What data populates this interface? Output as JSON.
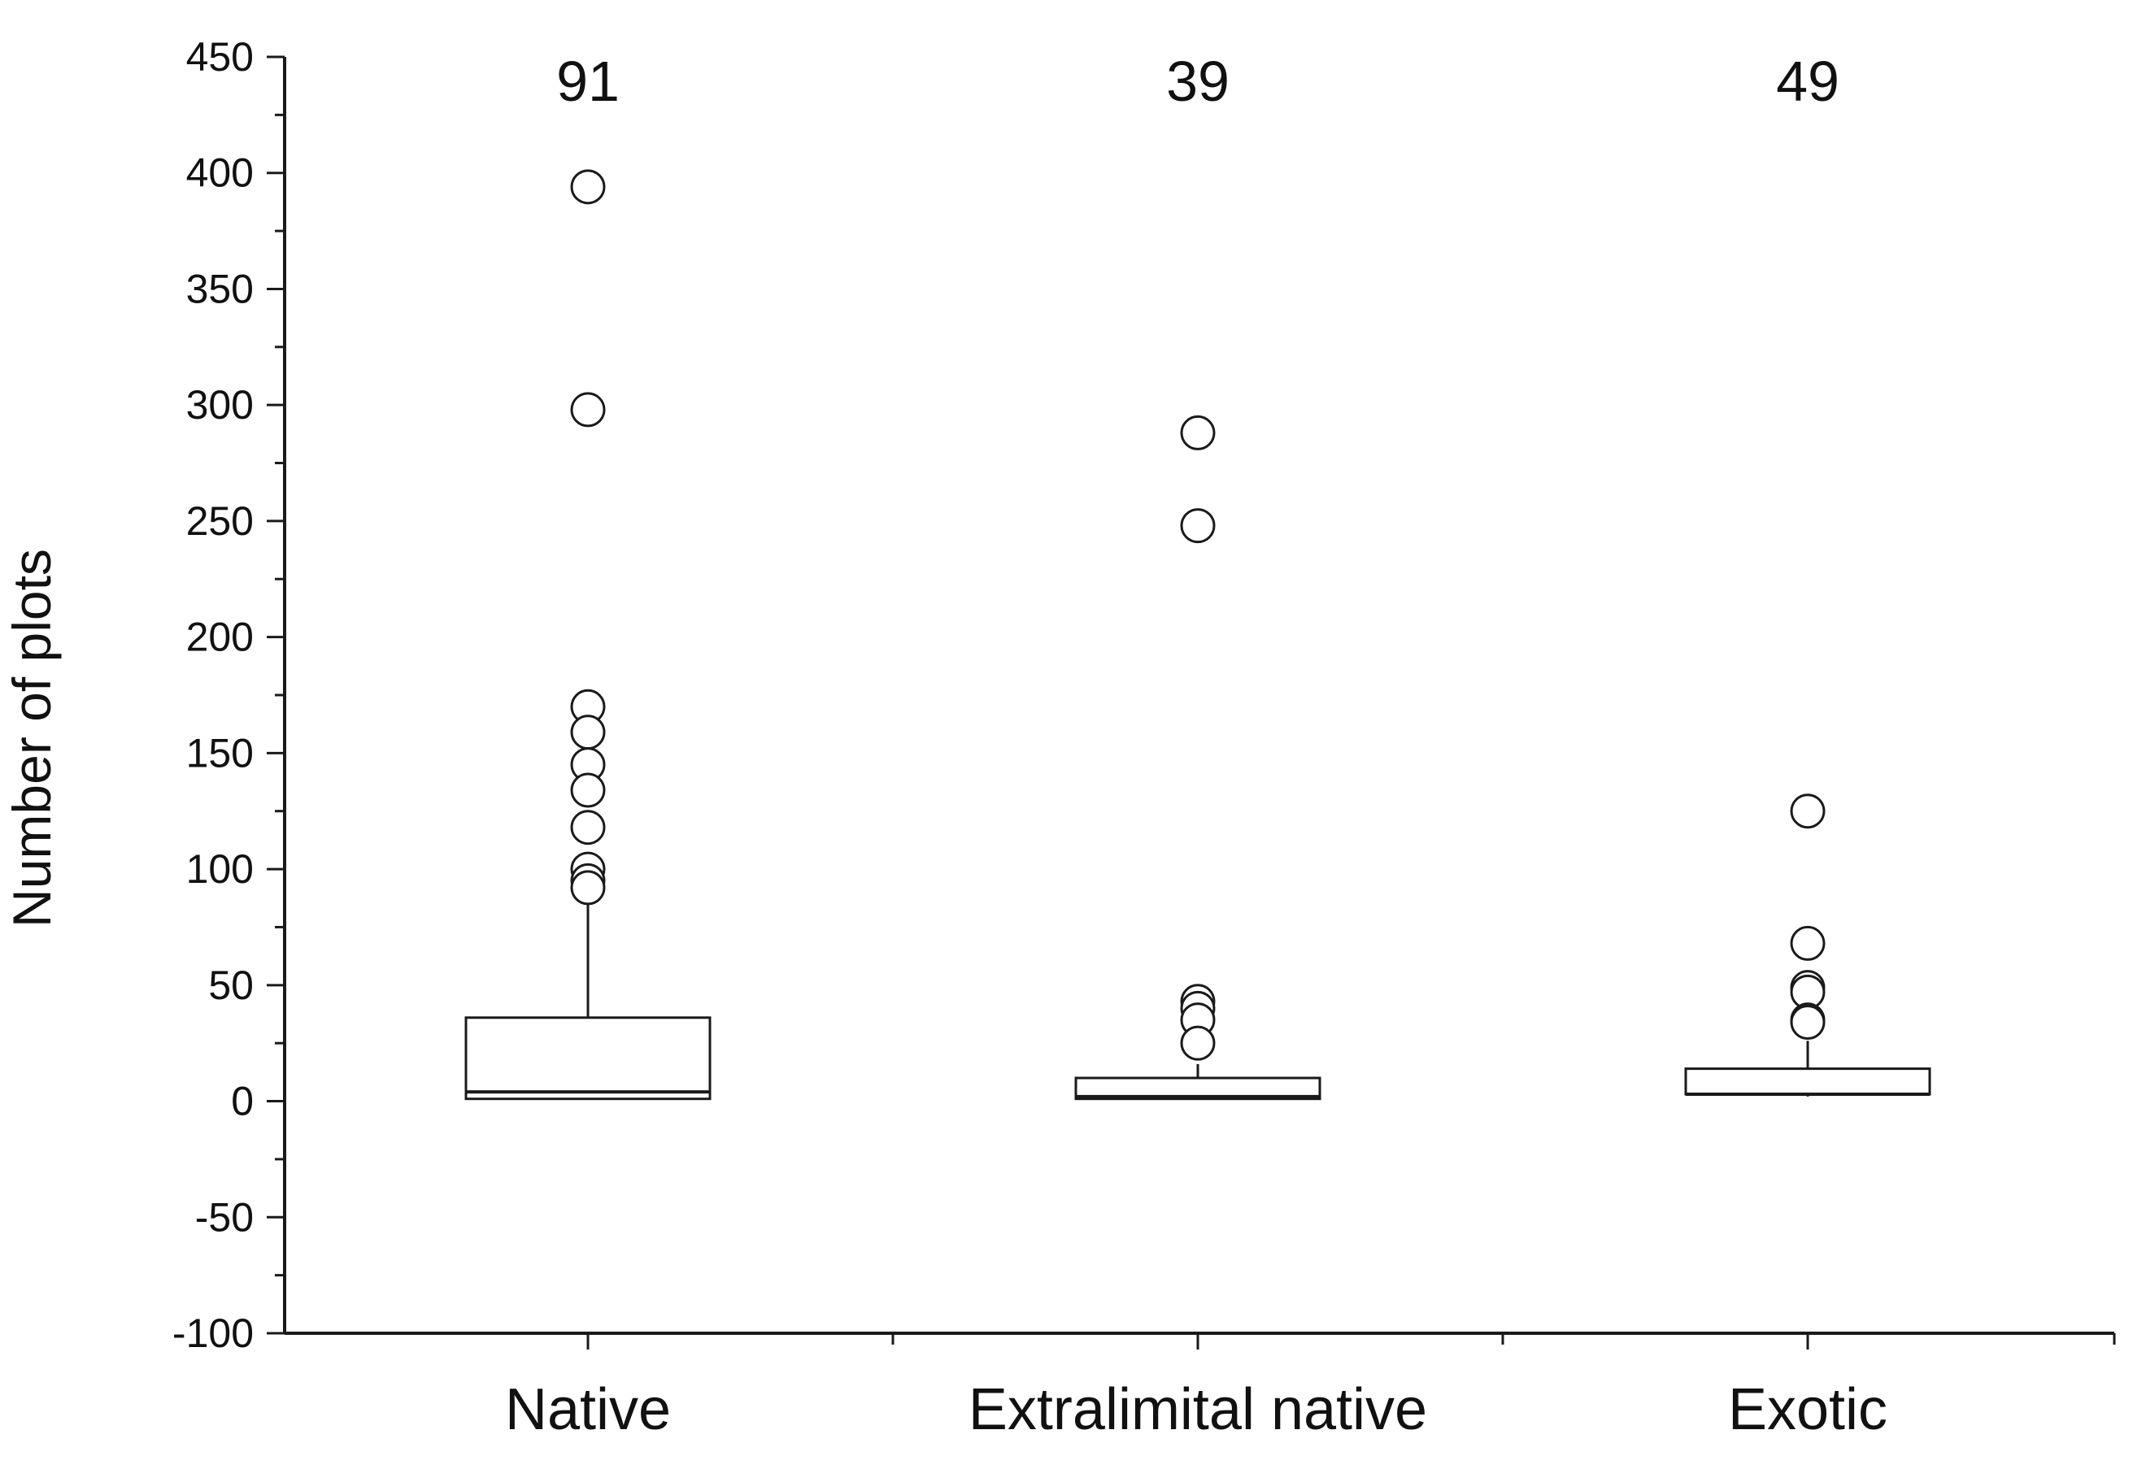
{
  "chart_data": {
    "type": "box",
    "ylabel": "Number of plots",
    "xlabel": "",
    "ylim": [
      -100,
      450
    ],
    "yticks": [
      450,
      400,
      350,
      300,
      250,
      200,
      150,
      100,
      50,
      0,
      -50,
      -100
    ],
    "y_tick_labels": [
      "450",
      "400",
      "350",
      "300",
      "250",
      "200",
      "150",
      "100",
      "50",
      "0",
      "-50",
      "-100"
    ],
    "y_minor_step": 25,
    "grid": false,
    "categories": [
      "Native",
      "Extralimital native",
      "Exotic"
    ],
    "groups": [
      {
        "category": "Native",
        "n_label": "91",
        "q1": 1,
        "median": 4,
        "q3": 36,
        "whisker_low": 1,
        "whisker_high": 85,
        "outliers": [
          394,
          298,
          170,
          159,
          145,
          134,
          118,
          100,
          95,
          92
        ]
      },
      {
        "category": "Extralimital native",
        "n_label": "39",
        "q1": 1,
        "median": 2,
        "q3": 10,
        "whisker_low": 1,
        "whisker_high": 16,
        "outliers": [
          288,
          248,
          43,
          40,
          35,
          25
        ]
      },
      {
        "category": "Exotic",
        "n_label": "49",
        "q1": 3,
        "median": 3,
        "q3": 14,
        "whisker_low": 2,
        "whisker_high": 26,
        "outliers": [
          125,
          68,
          49,
          47,
          35,
          34
        ]
      }
    ],
    "colors": {
      "box_fill": "#ffffff",
      "stroke": "#1a1a1a",
      "outlier_fill": "#ffffff",
      "text": "#111111"
    }
  }
}
